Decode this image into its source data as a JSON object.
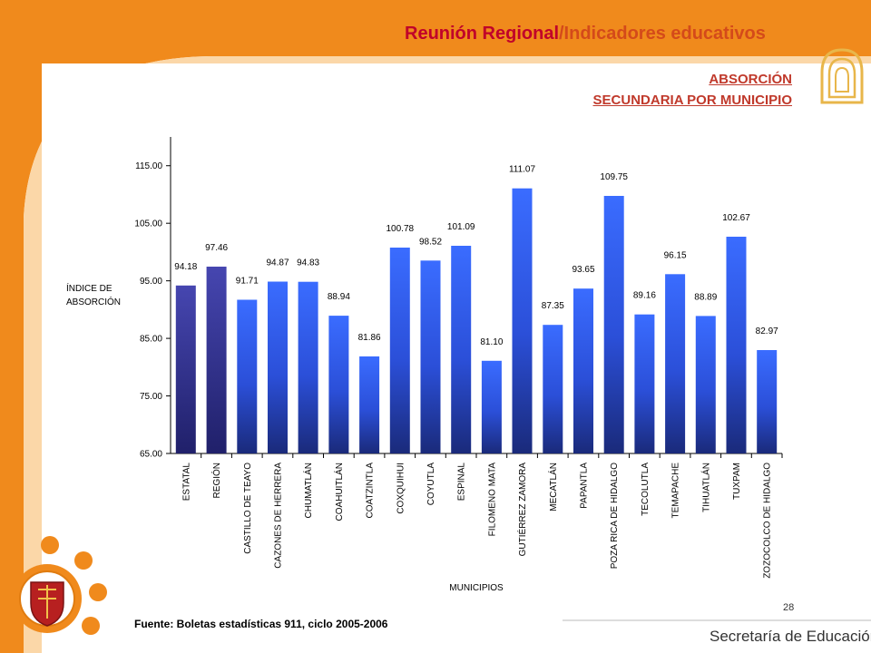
{
  "header": {
    "title_part1": "Reunión Regional",
    "title_part2": "/Indicadores educativos",
    "subtitle_line1": "ABSORCIÓN",
    "subtitle_line2": "SECUNDARIA POR MUNICIPIO"
  },
  "footer": {
    "source": "Fuente: Boletas estadísticas  911, ciclo 2005-2006",
    "page_number": "28",
    "department": "Secretaría de Educación"
  },
  "colors": {
    "accent_orange": "#f08a1c",
    "title_red": "#c0002a",
    "bar_blue": "#2d5cf0",
    "bar_highlight": "#3a3aa0"
  },
  "chart_data": {
    "type": "bar",
    "ylabel_line1": "ÍNDICE DE",
    "ylabel_line2": "ABSORCIÓN",
    "xlabel": "MUNICIPIOS",
    "ylim": [
      65,
      120
    ],
    "yticks": [
      "65.00",
      "75.00",
      "85.00",
      "95.00",
      "105.00",
      "115.00"
    ],
    "grid": false,
    "categories": [
      "ESTATAL",
      "REGIÓN",
      "CASTILLO DE TEAYO",
      "CAZONES DE HERRERA",
      "CHUMATLÁN",
      "COAHUITLÁN",
      "COATZINTLA",
      "COXQUIHUI",
      "COYUTLA",
      "ESPINAL",
      "FILOMENO MATA",
      "GUTIÉRREZ ZAMORA",
      "MECATLÁN",
      "PAPANTLA",
      "POZA RICA DE HIDALGO",
      "TECOLUTLA",
      "TEMAPACHE",
      "TIHUATLÁN",
      "TUXPAM",
      "ZOZOCOLCO DE HIDALGO"
    ],
    "values": [
      94.18,
      97.46,
      91.71,
      94.87,
      94.83,
      88.94,
      81.86,
      100.78,
      98.52,
      101.09,
      81.1,
      111.07,
      87.35,
      93.65,
      109.75,
      89.16,
      96.15,
      88.89,
      102.67,
      82.97
    ],
    "value_labels": [
      "94.18",
      "97.46",
      "91.71",
      "94.87",
      "94.83",
      "88.94",
      "81.86",
      "100.78",
      "98.52",
      "101.09",
      "81.10",
      "111.07",
      "87.35",
      "93.65",
      "109.75",
      "89.16",
      "96.15",
      "88.89",
      "102.67",
      "82.97"
    ],
    "highlighted_categories": [
      "ESTATAL",
      "REGIÓN"
    ]
  }
}
